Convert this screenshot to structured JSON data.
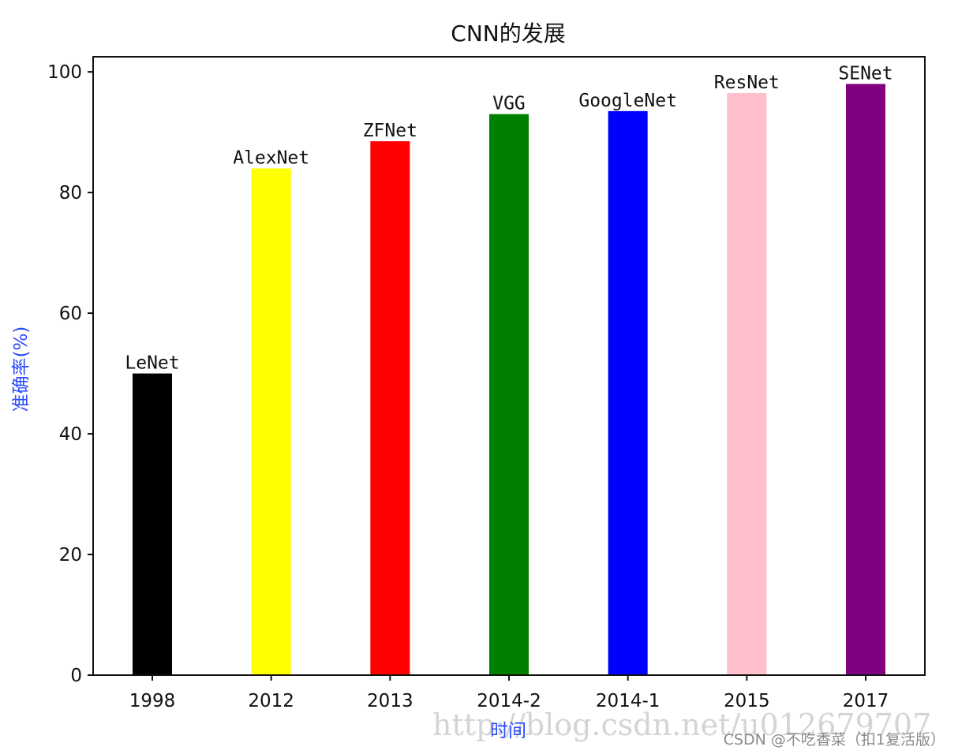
{
  "chart_data": {
    "type": "bar",
    "title": "CNN的发展",
    "xlabel": "时间",
    "ylabel": "准确率(%)",
    "ylim": [
      0,
      102.5
    ],
    "yticks": [
      0,
      20,
      40,
      60,
      80,
      100
    ],
    "grid": false,
    "categories": [
      "1998",
      "2012",
      "2013",
      "2014-2",
      "2014-1",
      "2015",
      "2017"
    ],
    "values": [
      50,
      84,
      88.5,
      93,
      93.5,
      96.5,
      98
    ],
    "labels": [
      "LeNet",
      "AlexNet",
      "ZFNet",
      "VGG",
      "GoogleNet",
      "ResNet",
      "SENet"
    ],
    "colors": [
      "#000000",
      "#ffff00",
      "#ff0000",
      "#008000",
      "#0000ff",
      "#ffc0cb",
      "#800080"
    ]
  },
  "watermark": "http://blog.csdn.net/u012679707",
  "credit": "CSDN @不吃香菜（扣1复活版）"
}
